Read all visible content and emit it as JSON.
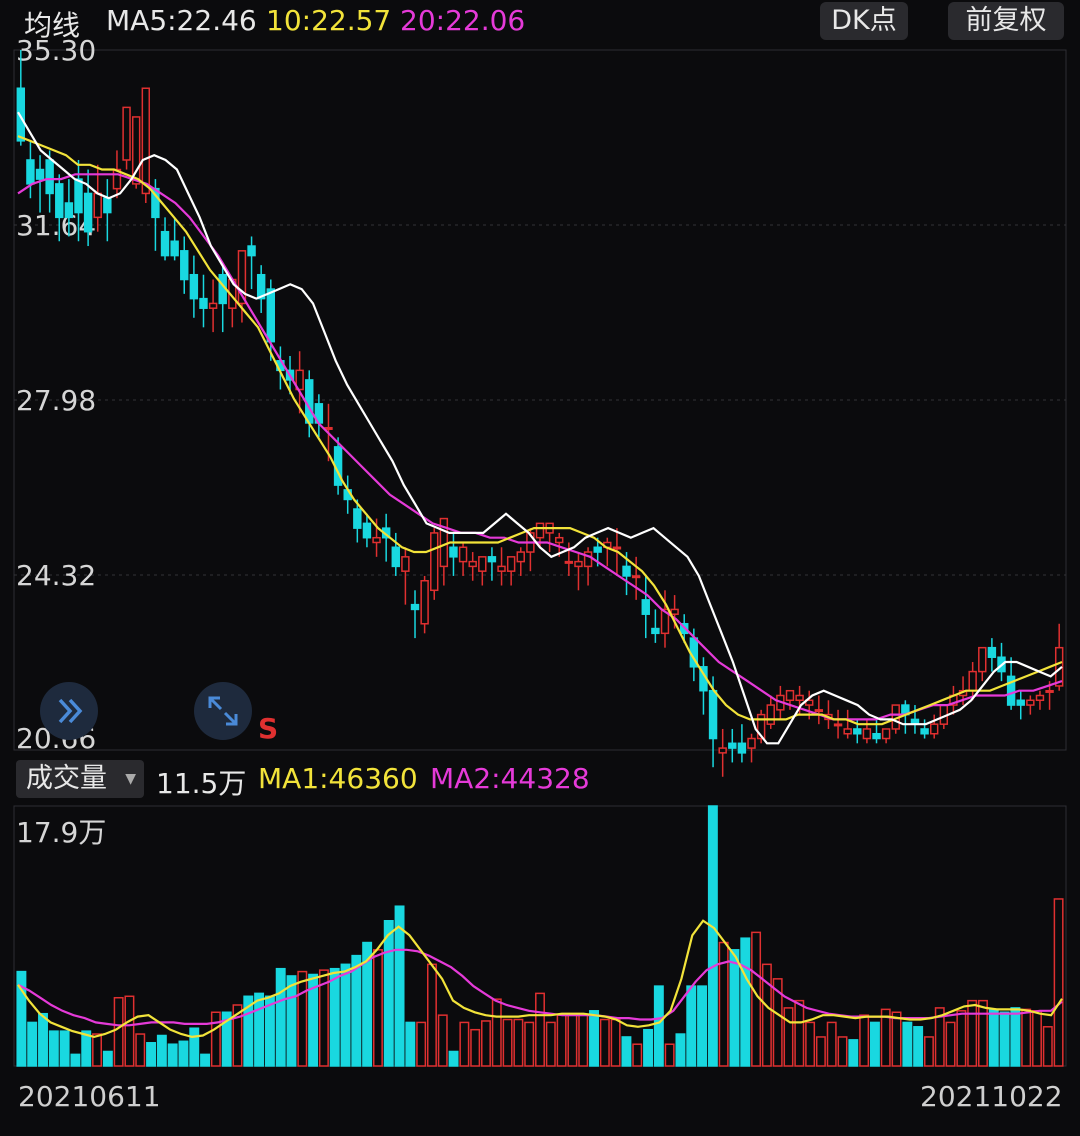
{
  "header": {
    "title": "均线",
    "ma5": "MA5:22.46",
    "ma10": "10:22.57",
    "ma20": "20:22.06",
    "dk_button": "DK点",
    "fq_button": "前复权"
  },
  "volume_header": {
    "selector": "成交量",
    "current": "11.5万",
    "ma1": "MA1:46360",
    "ma2": "MA2:44328",
    "max_label": "17.9万"
  },
  "signal_mark": "S",
  "dates": {
    "start": "20210611",
    "end": "20211022"
  },
  "icons": {
    "expand": "double-chevron-right-icon",
    "fullscreen": "expand-arrows-icon"
  },
  "colors": {
    "up": "#e03030",
    "down": "#19d8e0",
    "ma5": "#ffffff",
    "ma10": "#f2e33a",
    "ma20": "#e53ad8"
  },
  "chart_data": [
    {
      "type": "candlestick",
      "yticks": [
        "35.30",
        "31.64",
        "27.98",
        "24.32",
        "20.66"
      ],
      "ylim": [
        20.66,
        35.3
      ],
      "x_start": "20210611",
      "x_end": "20211022",
      "candles": [
        [
          34.5,
          35.3,
          33.4,
          33.3
        ],
        [
          33.0,
          33.4,
          32.5,
          32.2
        ],
        [
          32.8,
          33.1,
          32.6,
          31.9
        ],
        [
          33.0,
          33.2,
          32.3,
          31.9
        ],
        [
          32.5,
          32.7,
          31.8,
          31.3
        ],
        [
          32.1,
          32.6,
          31.8,
          31.4
        ],
        [
          32.6,
          33.0,
          31.9,
          31.3
        ],
        [
          32.3,
          32.8,
          31.5,
          31.2
        ],
        [
          31.8,
          32.9,
          32.3,
          31.5
        ],
        [
          32.2,
          32.6,
          31.9,
          31.3
        ],
        [
          32.4,
          33.2,
          32.8,
          32.2
        ],
        [
          33.0,
          33.9,
          34.1,
          32.8
        ],
        [
          32.5,
          33.6,
          33.9,
          32.4
        ],
        [
          32.3,
          34.3,
          34.5,
          32.1
        ],
        [
          32.4,
          32.6,
          31.8,
          31.1
        ],
        [
          31.5,
          31.8,
          31.0,
          30.9
        ],
        [
          31.3,
          31.8,
          31.0,
          30.9
        ],
        [
          31.1,
          31.4,
          30.5,
          30.2
        ],
        [
          30.6,
          31.0,
          30.1,
          29.7
        ],
        [
          30.1,
          30.6,
          29.9,
          29.5
        ],
        [
          29.9,
          30.5,
          30.0,
          29.4
        ],
        [
          30.6,
          30.8,
          30.0,
          29.4
        ],
        [
          29.9,
          30.4,
          30.5,
          29.5
        ],
        [
          30.0,
          31.0,
          31.1,
          29.6
        ],
        [
          31.2,
          31.4,
          31.0,
          30.3
        ],
        [
          30.6,
          30.8,
          30.1,
          29.8
        ],
        [
          30.3,
          30.5,
          29.2,
          28.8
        ],
        [
          28.8,
          29.1,
          28.6,
          28.2
        ],
        [
          28.6,
          28.9,
          28.4,
          28.1
        ],
        [
          28.2,
          29.0,
          28.6,
          27.7
        ],
        [
          28.4,
          28.6,
          27.5,
          27.2
        ],
        [
          27.9,
          28.1,
          27.5,
          27.2
        ],
        [
          27.4,
          27.9,
          27.4,
          26.7
        ],
        [
          27.0,
          27.2,
          26.2,
          26.0
        ],
        [
          26.1,
          26.4,
          25.9,
          25.6
        ],
        [
          25.7,
          25.9,
          25.3,
          25.0
        ],
        [
          25.4,
          25.6,
          25.1,
          24.9
        ],
        [
          25.0,
          25.5,
          25.1,
          24.7
        ],
        [
          25.3,
          25.6,
          25.1,
          24.6
        ],
        [
          24.9,
          25.2,
          24.5,
          24.3
        ],
        [
          24.4,
          24.9,
          24.7,
          23.7
        ],
        [
          23.7,
          24.0,
          23.6,
          23.0
        ],
        [
          23.3,
          24.3,
          24.2,
          23.1
        ],
        [
          24.0,
          25.3,
          25.2,
          23.8
        ],
        [
          24.5,
          25.1,
          25.5,
          24.1
        ],
        [
          24.9,
          25.2,
          24.7,
          24.3
        ],
        [
          24.6,
          25.0,
          24.9,
          24.3
        ],
        [
          24.5,
          24.8,
          24.6,
          24.2
        ],
        [
          24.4,
          24.7,
          24.7,
          24.1
        ],
        [
          24.7,
          24.9,
          24.6,
          24.2
        ],
        [
          24.4,
          24.9,
          24.5,
          24.1
        ],
        [
          24.4,
          24.6,
          24.7,
          24.1
        ],
        [
          24.6,
          24.9,
          24.8,
          24.3
        ],
        [
          24.8,
          25.3,
          25.2,
          24.4
        ],
        [
          25.1,
          25.3,
          25.4,
          24.9
        ],
        [
          25.2,
          25.3,
          25.4,
          24.8
        ],
        [
          25.0,
          25.2,
          25.1,
          24.7
        ],
        [
          24.6,
          25.0,
          24.6,
          24.3
        ],
        [
          24.5,
          24.8,
          24.6,
          24.0
        ],
        [
          24.5,
          24.9,
          24.8,
          24.1
        ],
        [
          24.9,
          25.1,
          24.8,
          24.5
        ],
        [
          24.9,
          25.1,
          25.0,
          24.5
        ],
        [
          24.9,
          25.3,
          24.9,
          24.3
        ],
        [
          24.5,
          24.8,
          24.3,
          23.9
        ],
        [
          24.3,
          24.7,
          24.3,
          23.8
        ],
        [
          23.8,
          24.3,
          23.5,
          23.0
        ],
        [
          23.2,
          23.6,
          23.1,
          22.9
        ],
        [
          23.1,
          24.0,
          23.6,
          22.8
        ],
        [
          23.5,
          23.9,
          23.6,
          23.2
        ],
        [
          23.3,
          23.5,
          23.1,
          22.9
        ],
        [
          23.0,
          23.2,
          22.4,
          22.1
        ],
        [
          22.4,
          22.6,
          21.9,
          21.4
        ],
        [
          21.9,
          22.2,
          20.9,
          20.3
        ],
        [
          20.6,
          21.1,
          20.7,
          20.1
        ],
        [
          20.8,
          21.1,
          20.7,
          20.4
        ],
        [
          20.8,
          21.2,
          20.6,
          20.4
        ],
        [
          20.7,
          21.0,
          20.9,
          20.4
        ],
        [
          20.9,
          21.5,
          21.4,
          20.8
        ],
        [
          21.2,
          21.8,
          21.6,
          21.1
        ],
        [
          21.5,
          22.0,
          21.8,
          21.3
        ],
        [
          21.7,
          21.9,
          21.9,
          21.5
        ],
        [
          21.7,
          22.0,
          21.8,
          21.4
        ],
        [
          21.6,
          21.9,
          21.7,
          21.3
        ],
        [
          21.5,
          21.8,
          21.5,
          21.2
        ],
        [
          21.3,
          21.7,
          21.4,
          21.1
        ],
        [
          21.2,
          21.5,
          21.2,
          20.9
        ],
        [
          21.0,
          21.5,
          21.1,
          20.9
        ],
        [
          21.1,
          21.3,
          21.0,
          20.8
        ],
        [
          20.9,
          21.3,
          21.1,
          20.8
        ],
        [
          21.0,
          21.3,
          20.9,
          20.8
        ],
        [
          20.9,
          21.0,
          21.1,
          20.8
        ],
        [
          21.1,
          21.6,
          21.6,
          21.0
        ],
        [
          21.6,
          21.7,
          21.4,
          21.0
        ],
        [
          21.3,
          21.6,
          21.2,
          21.0
        ],
        [
          21.1,
          21.3,
          21.0,
          20.9
        ],
        [
          21.0,
          21.4,
          21.2,
          20.9
        ],
        [
          21.2,
          21.6,
          21.6,
          21.1
        ],
        [
          21.6,
          22.0,
          21.8,
          21.4
        ],
        [
          21.8,
          22.2,
          21.9,
          21.6
        ],
        [
          21.9,
          22.5,
          22.3,
          21.7
        ],
        [
          22.3,
          22.8,
          22.8,
          22.1
        ],
        [
          22.8,
          23.0,
          22.6,
          22.3
        ],
        [
          22.6,
          22.9,
          22.3,
          22.1
        ],
        [
          22.2,
          22.6,
          21.6,
          21.5
        ],
        [
          21.7,
          21.9,
          21.6,
          21.3
        ],
        [
          21.6,
          21.8,
          21.7,
          21.4
        ],
        [
          21.7,
          21.9,
          21.8,
          21.5
        ],
        [
          21.9,
          22.1,
          21.9,
          21.5
        ],
        [
          22.0,
          23.3,
          22.8,
          21.9
        ]
      ],
      "ma5": [
        34.0,
        33.6,
        33.2,
        33.0,
        32.8,
        32.6,
        32.5,
        32.3,
        32.2,
        32.3,
        32.6,
        33.0,
        33.1,
        33.0,
        32.8,
        32.3,
        31.8,
        31.2,
        30.8,
        30.4,
        30.2,
        30.1,
        30.2,
        30.3,
        30.4,
        30.3,
        30.0,
        29.4,
        28.8,
        28.3,
        27.9,
        27.5,
        27.1,
        26.7,
        26.2,
        25.8,
        25.4,
        25.3,
        25.2,
        25.2,
        25.2,
        25.2,
        25.4,
        25.6,
        25.4,
        25.2,
        24.9,
        24.7,
        24.8,
        24.9,
        25.1,
        25.2,
        25.3,
        25.2,
        25.1,
        25.2,
        25.3,
        25.1,
        24.9,
        24.7,
        24.3,
        23.7,
        23.1,
        22.5,
        21.8,
        21.1,
        20.8,
        20.8,
        21.2,
        21.6,
        21.8,
        21.9,
        21.8,
        21.7,
        21.6,
        21.4,
        21.3,
        21.3,
        21.2,
        21.2,
        21.2,
        21.3,
        21.4,
        21.5,
        21.7,
        22.0,
        22.3,
        22.5,
        22.5,
        22.4,
        22.3,
        22.2,
        22.4
      ],
      "ma10": [
        33.5,
        33.4,
        33.3,
        33.2,
        33.1,
        32.9,
        32.9,
        32.8,
        32.8,
        32.7,
        32.6,
        32.4,
        32.1,
        31.8,
        31.5,
        31.1,
        30.7,
        30.4,
        30.1,
        29.8,
        29.5,
        29.0,
        28.5,
        28.0,
        27.6,
        27.2,
        26.8,
        26.3,
        25.9,
        25.6,
        25.3,
        25.1,
        24.9,
        24.8,
        24.8,
        24.9,
        25.0,
        25.0,
        25.0,
        25.0,
        25.0,
        25.1,
        25.2,
        25.3,
        25.3,
        25.3,
        25.3,
        25.2,
        25.1,
        24.9,
        24.8,
        24.6,
        24.4,
        24.1,
        23.7,
        23.2,
        22.7,
        22.3,
        21.9,
        21.6,
        21.4,
        21.3,
        21.3,
        21.3,
        21.3,
        21.4,
        21.4,
        21.4,
        21.3,
        21.3,
        21.2,
        21.2,
        21.2,
        21.3,
        21.4,
        21.5,
        21.6,
        21.7,
        21.8,
        21.9,
        21.9,
        21.9,
        22.0,
        22.1,
        22.2,
        22.3,
        22.4,
        22.5
      ],
      "ma20": [
        32.3,
        32.5,
        32.6,
        32.6,
        32.7,
        32.7,
        32.7,
        32.7,
        32.6,
        32.5,
        32.3,
        32.1,
        31.8,
        31.4,
        31.0,
        30.5,
        30.0,
        29.5,
        29.0,
        28.5,
        28.0,
        27.5,
        27.2,
        26.9,
        26.6,
        26.3,
        26.0,
        25.8,
        25.6,
        25.4,
        25.3,
        25.2,
        25.2,
        25.1,
        25.1,
        25.0,
        25.0,
        25.0,
        24.9,
        24.8,
        24.7,
        24.5,
        24.3,
        24.1,
        23.9,
        23.6,
        23.4,
        23.1,
        22.8,
        22.5,
        22.3,
        22.1,
        21.9,
        21.7,
        21.6,
        21.5,
        21.4,
        21.3,
        21.3,
        21.3,
        21.3,
        21.4,
        21.4,
        21.5,
        21.6,
        21.6,
        21.7,
        21.8,
        21.8,
        21.8,
        21.9,
        21.9,
        22.0,
        22.1
      ]
    },
    {
      "type": "bar",
      "title": "成交量",
      "ymax_label": "17.9万",
      "ylim": [
        0,
        179000
      ],
      "values": [
        65000,
        30000,
        36000,
        24000,
        24000,
        8000,
        24000,
        22000,
        10000,
        47000,
        48000,
        22000,
        16000,
        21000,
        15000,
        17000,
        26000,
        8000,
        37000,
        37000,
        42000,
        48000,
        50000,
        48000,
        67000,
        62000,
        65000,
        63000,
        66000,
        67000,
        70000,
        76000,
        85000,
        80000,
        100000,
        110000,
        30000,
        30000,
        70000,
        35000,
        10000,
        30000,
        25000,
        31000,
        46000,
        32000,
        32000,
        30000,
        50000,
        30000,
        35000,
        36000,
        35000,
        38000,
        32000,
        32000,
        20000,
        15000,
        25000,
        55000,
        15000,
        22000,
        55000,
        55000,
        180000,
        85000,
        80000,
        88000,
        92000,
        70000,
        60000,
        40000,
        45000,
        30000,
        20000,
        30000,
        20000,
        18000,
        35000,
        30000,
        39000,
        37000,
        30000,
        27000,
        20000,
        40000,
        30000,
        38000,
        45000,
        45000,
        39000,
        37000,
        40000,
        39000,
        38000,
        27000,
        115000
      ],
      "ma1": [
        56000,
        45000,
        36000,
        30000,
        27000,
        24000,
        22000,
        20000,
        22000,
        25000,
        30000,
        34000,
        35000,
        30000,
        25000,
        22000,
        20000,
        21000,
        25000,
        30000,
        35000,
        40000,
        45000,
        47000,
        50000,
        55000,
        58000,
        60000,
        62000,
        64000,
        65000,
        68000,
        72000,
        80000,
        90000,
        96000,
        90000,
        80000,
        70000,
        60000,
        45000,
        40000,
        37000,
        35000,
        34000,
        34000,
        34000,
        35000,
        35000,
        35000,
        36000,
        36000,
        36000,
        35000,
        34000,
        32000,
        28000,
        27000,
        28000,
        30000,
        38000,
        60000,
        90000,
        100000,
        95000,
        85000,
        75000,
        60000,
        48000,
        40000,
        35000,
        30000,
        30000,
        32000,
        35000,
        35000,
        34000,
        33000,
        34000,
        34000,
        34000,
        33000,
        32000,
        32000,
        33000,
        35000,
        38000,
        41000,
        42000,
        40000,
        39000,
        39000,
        39000,
        38000,
        36000,
        35000,
        46360
      ],
      "ma2": [
        56000,
        52000,
        47000,
        42000,
        38000,
        35000,
        33000,
        30000,
        29000,
        28000,
        28000,
        29000,
        30000,
        30000,
        30000,
        29000,
        29000,
        29000,
        30000,
        32000,
        34000,
        37000,
        40000,
        43000,
        46000,
        48000,
        52000,
        55000,
        58000,
        62000,
        65000,
        70000,
        75000,
        78000,
        80000,
        80000,
        79000,
        76000,
        72000,
        68000,
        62000,
        55000,
        50000,
        45000,
        42000,
        40000,
        38000,
        37000,
        36000,
        35000,
        35000,
        35000,
        35000,
        34000,
        33000,
        33000,
        32000,
        32000,
        33000,
        38000,
        48000,
        58000,
        66000,
        70000,
        72000,
        70000,
        66000,
        60000,
        54000,
        48000,
        44000,
        40000,
        38000,
        36000,
        35000,
        34000,
        34000,
        34000,
        34000,
        33000,
        33000,
        33000,
        33000,
        34000,
        35000,
        36000,
        36000,
        36000,
        36000,
        36000,
        36000,
        37000,
        38000,
        38000,
        44328
      ]
    }
  ]
}
